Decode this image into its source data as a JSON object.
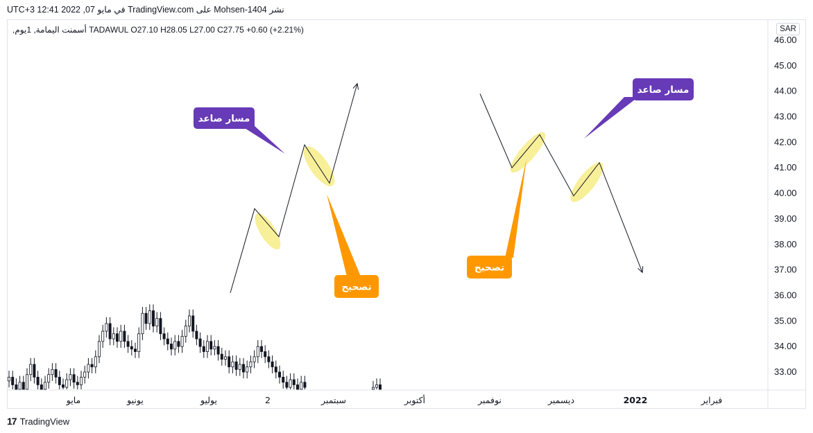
{
  "header": {
    "publish_line": "UTC+3 في مايو 07, 2022 12:41 TradingView.com على Mohsen-1404 نشر"
  },
  "legend": {
    "line": ",أسمنت اليمامة, 1يوم TADAWUL  O27.10  H28.05  L27.00  C27.75  +0.60 (+2.21%)"
  },
  "price_axis": {
    "currency": "SAR",
    "ticks": [
      "46.00",
      "45.00",
      "44.00",
      "43.00",
      "42.00",
      "41.00",
      "40.00",
      "39.00",
      "38.00",
      "37.00",
      "36.00",
      "35.00",
      "34.00",
      "33.00"
    ]
  },
  "footer": {
    "brand": "TradingView"
  },
  "colors": {
    "purple_callout": "#673ab7",
    "orange_callout": "#ff9800",
    "highlight": "#f5e663",
    "candle": "#131722"
  },
  "chart_data": {
    "type": "candlestick",
    "ylim": [
      32.3,
      46.4
    ],
    "time_axis_labels": [
      "مايو",
      "يونيو",
      "يوليو",
      "2",
      "سبتمبر",
      "أكتوبر",
      "نوفمبر",
      "ديسمبر",
      "2022",
      "فبراير"
    ],
    "candles_close_path": [
      32.8,
      32.5,
      32.2,
      32.6,
      32.3,
      32.9,
      33.3,
      32.8,
      32.5,
      32.3,
      32.6,
      32.9,
      33.1,
      32.8,
      32.5,
      32.4,
      32.7,
      32.9,
      32.6,
      32.5,
      32.8,
      33.0,
      33.3,
      33.2,
      33.6,
      34.2,
      34.6,
      34.9,
      34.3,
      34.5,
      34.2,
      34.6,
      34.2,
      34.0,
      33.9,
      33.8,
      34.5,
      35.3,
      34.9,
      35.4,
      34.8,
      35.1,
      34.5,
      34.3,
      34.1,
      33.9,
      34.2,
      34.0,
      34.4,
      34.8,
      35.2,
      34.6,
      34.3,
      34.0,
      33.8,
      34.2,
      33.9,
      34.0,
      33.7,
      33.5,
      33.6,
      33.2,
      33.4,
      33.1,
      33.3,
      33.0,
      33.2,
      33.4,
      33.6,
      34.0,
      33.8,
      33.6,
      33.4,
      33.2,
      33.0,
      32.8,
      32.6,
      32.4,
      32.7,
      32.5,
      32.3,
      32.6,
      32.4
    ],
    "candles_tail_close_path": [
      32.4,
      32.5,
      32.3
    ],
    "annotations": {
      "uptrend_label": "مسار صاعد",
      "correction_label": "تصحيح",
      "pattern_1_path": [
        [
          0,
          36.1
        ],
        [
          1,
          39.4
        ],
        [
          2,
          38.3
        ],
        [
          3,
          41.9
        ],
        [
          4,
          40.4
        ],
        [
          5,
          44.3
        ]
      ],
      "pattern_2_path": [
        [
          0,
          43.9
        ],
        [
          1,
          41.0
        ],
        [
          2,
          42.3
        ],
        [
          3,
          39.9
        ],
        [
          4,
          41.2
        ],
        [
          5,
          36.9
        ]
      ]
    }
  }
}
